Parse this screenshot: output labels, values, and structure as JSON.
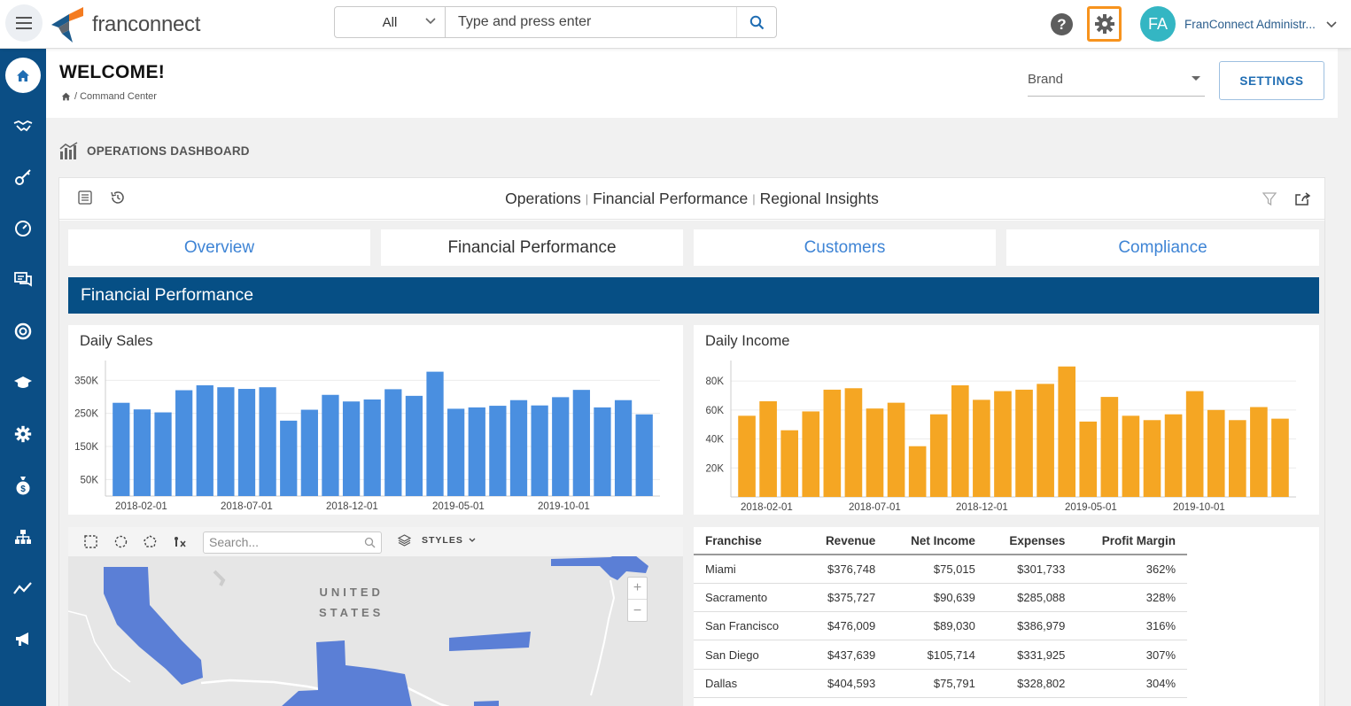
{
  "app": {
    "logo_text": "franconnect",
    "colors": {
      "sidebar": "#0b4e85",
      "accent": "#3e84d5",
      "orange": "#f5a623",
      "blue_bar": "#4a8fe0",
      "section": "#064f85",
      "avatar": "#34b6c3"
    }
  },
  "topbar": {
    "menu_icon": "hamburger-icon",
    "search_scope": "All",
    "search_placeholder": "Type and press enter",
    "help_icon": "question-icon",
    "settings_icon": "gear-icon",
    "avatar_initials": "FA",
    "user_name": "FranConnect Administr..."
  },
  "sidebar": {
    "items": [
      {
        "name": "home",
        "icon": "home-icon",
        "active": true
      },
      {
        "name": "handshake",
        "icon": "handshake-icon"
      },
      {
        "name": "key",
        "icon": "key-icon"
      },
      {
        "name": "gauge",
        "icon": "gauge-icon"
      },
      {
        "name": "messages",
        "icon": "messages-icon"
      },
      {
        "name": "support",
        "icon": "lifebuoy-icon"
      },
      {
        "name": "training",
        "icon": "graduation-cap-icon"
      },
      {
        "name": "admin",
        "icon": "gear-icon"
      },
      {
        "name": "finance",
        "icon": "money-bag-icon"
      },
      {
        "name": "org",
        "icon": "sitemap-icon"
      },
      {
        "name": "analytics",
        "icon": "line-chart-icon"
      },
      {
        "name": "marketing",
        "icon": "megaphone-icon"
      }
    ]
  },
  "header": {
    "title": "WELCOME!",
    "breadcrumb": "/ Command Center",
    "brand_label": "Brand",
    "settings_label": "SETTINGS"
  },
  "dashboard": {
    "heading": "OPERATIONS DASHBOARD",
    "crumbs": [
      "Operations",
      "Financial Performance",
      "Regional Insights"
    ],
    "tabs": [
      {
        "label": "Overview",
        "active": false
      },
      {
        "label": "Financial Performance",
        "active": true
      },
      {
        "label": "Customers",
        "active": false
      },
      {
        "label": "Compliance",
        "active": false
      }
    ],
    "section_title": "Financial Performance"
  },
  "chart_data": [
    {
      "type": "bar",
      "title": "Daily Sales",
      "color": "#4a8fe0",
      "x_tick_labels": [
        "2018-02-01",
        "2018-07-01",
        "2018-12-01",
        "2019-05-01",
        "2019-10-01"
      ],
      "y_tick_labels": [
        "350K",
        "250K",
        "150K",
        "50K"
      ],
      "y_ticks": [
        350000,
        250000,
        150000,
        50000
      ],
      "ylim": [
        0,
        383000
      ],
      "values": [
        282000,
        262000,
        253000,
        320000,
        335000,
        329000,
        324000,
        329000,
        228000,
        261000,
        306000,
        286000,
        292000,
        323000,
        303000,
        376000,
        264000,
        268000,
        273000,
        290000,
        274000,
        299000,
        321000,
        268000,
        290000,
        247000
      ]
    },
    {
      "type": "bar",
      "title": "Daily Income",
      "color": "#f5a623",
      "x_tick_labels": [
        "2018-02-01",
        "2018-07-01",
        "2018-12-01",
        "2019-05-01",
        "2019-10-01"
      ],
      "y_tick_labels": [
        "80K",
        "60K",
        "40K",
        "20K"
      ],
      "y_ticks": [
        80000,
        60000,
        40000,
        20000
      ],
      "ylim": [
        0,
        88000
      ],
      "values": [
        56000,
        66000,
        46000,
        59000,
        74000,
        75000,
        61000,
        65000,
        35000,
        57000,
        77000,
        67000,
        73000,
        74000,
        78000,
        90000,
        52000,
        69000,
        56000,
        53000,
        57000,
        73000,
        60000,
        53000,
        62000,
        54000
      ]
    }
  ],
  "map": {
    "search_placeholder": "Search...",
    "styles_label": "STYLES",
    "country_label_1": "UNITED",
    "country_label_2": "STATES",
    "zoom_in": "+",
    "zoom_out": "−"
  },
  "table": {
    "headers": [
      "Franchise",
      "Revenue",
      "Net Income",
      "Expenses",
      "Profit Margin"
    ],
    "rows": [
      [
        "Miami",
        "$376,748",
        "$75,015",
        "$301,733",
        "362%"
      ],
      [
        "Sacramento",
        "$375,727",
        "$90,639",
        "$285,088",
        "328%"
      ],
      [
        "San Francisco",
        "$476,009",
        "$89,030",
        "$386,979",
        "316%"
      ],
      [
        "San Diego",
        "$437,639",
        "$105,714",
        "$331,925",
        "307%"
      ],
      [
        "Dallas",
        "$404,593",
        "$75,791",
        "$328,802",
        "304%"
      ]
    ]
  }
}
